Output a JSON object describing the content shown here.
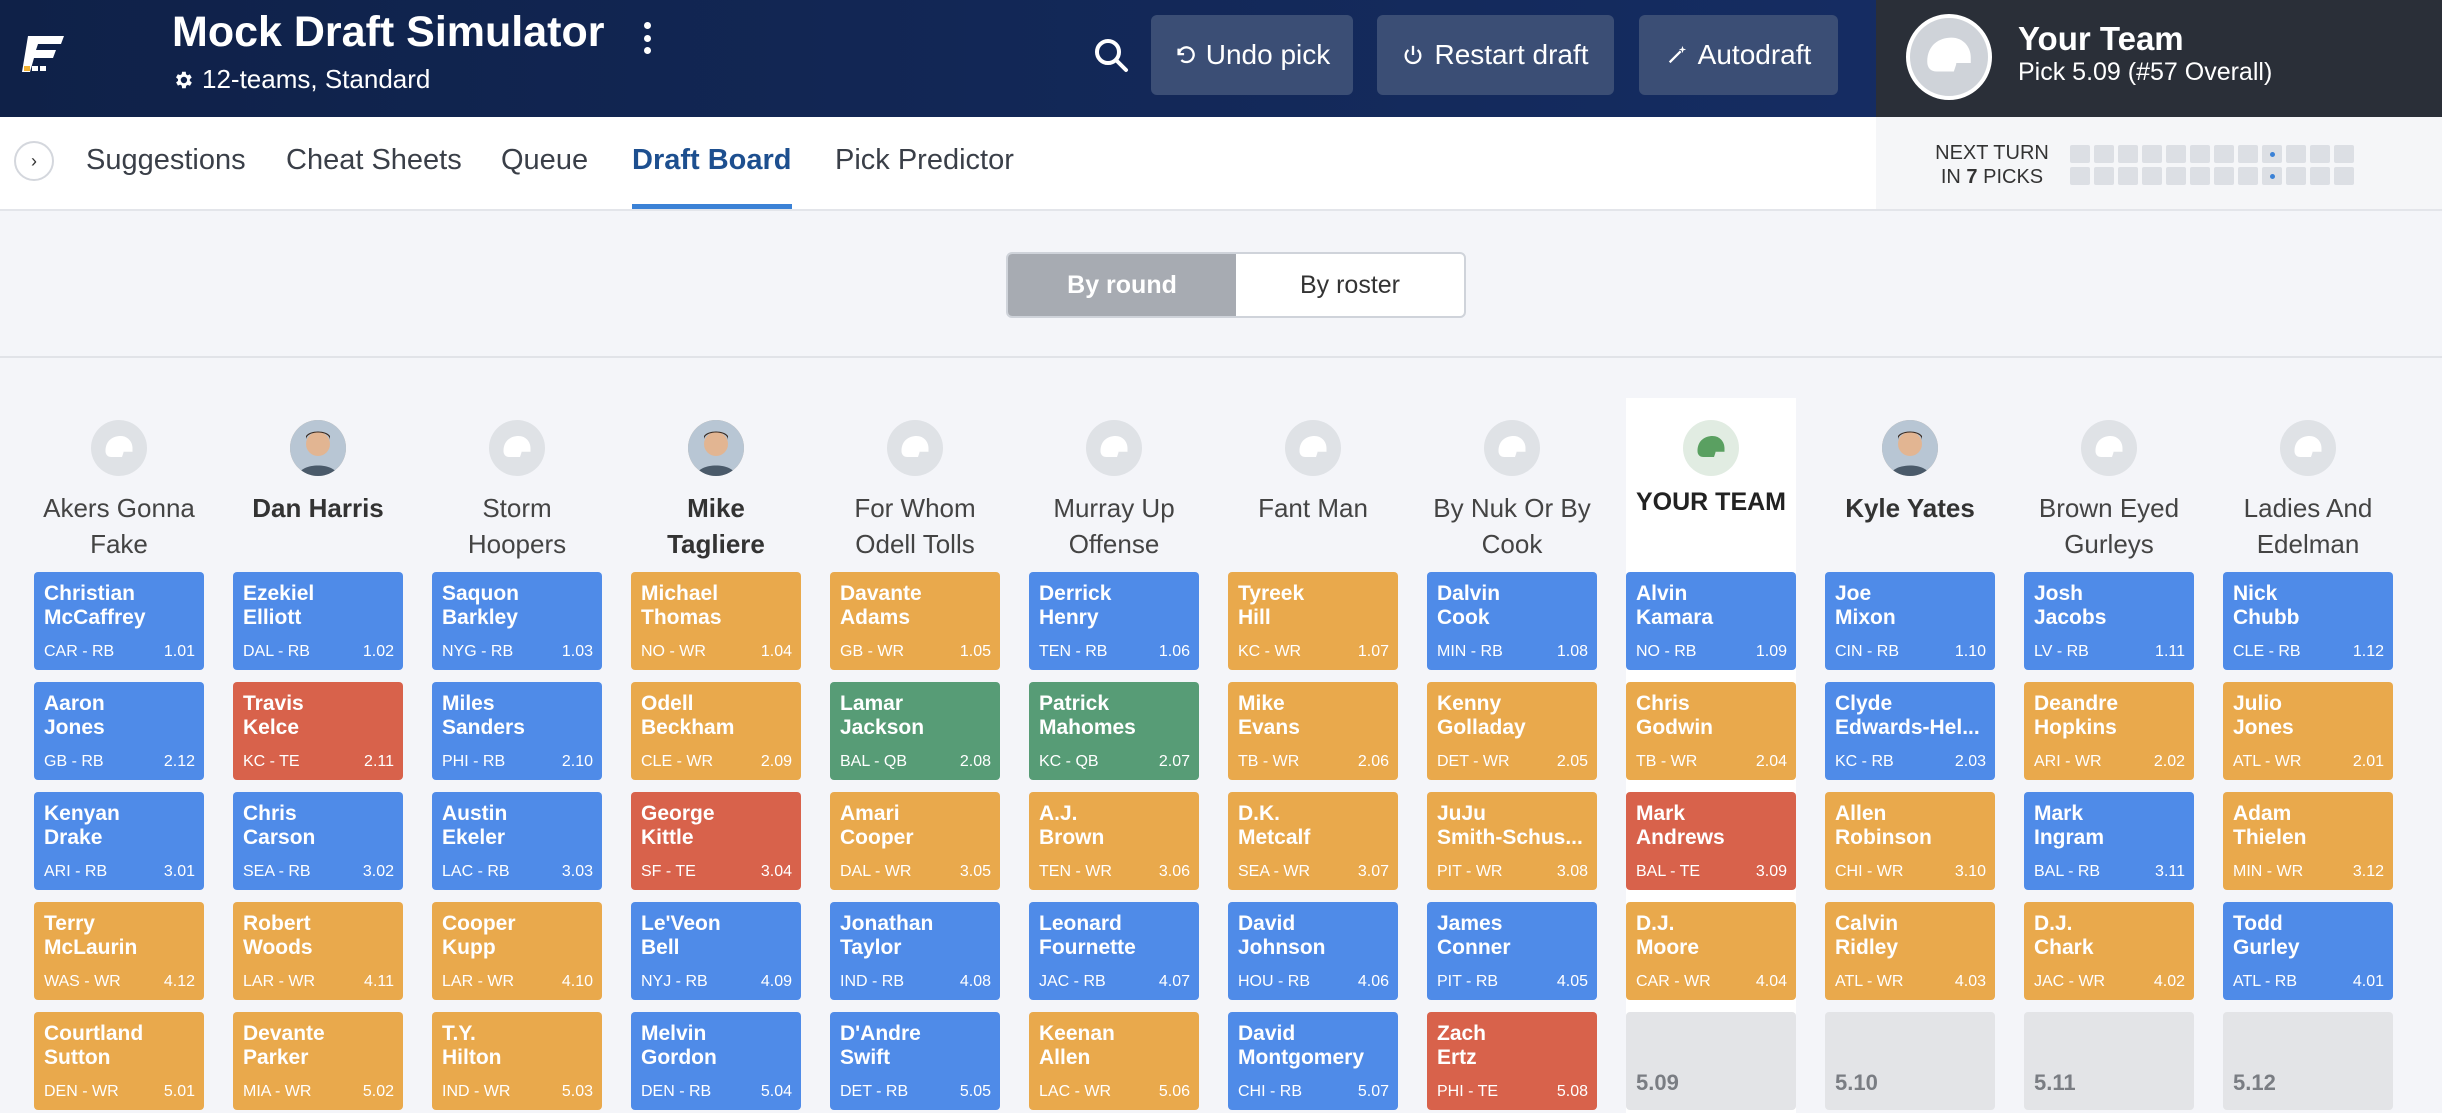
{
  "app": {
    "title": "Mock Draft Simulator",
    "settings": "12-teams, Standard",
    "undo_label": "Undo pick",
    "restart_label": "Restart draft",
    "autodraft_label": "Autodraft"
  },
  "my_team": {
    "name": "Your Team",
    "pick": "Pick 5.09 (#57 Overall)"
  },
  "tabs": [
    "Suggestions",
    "Cheat Sheets",
    "Queue",
    "Draft Board",
    "Pick Predictor"
  ],
  "next_turn": {
    "line1": "NEXT TURN",
    "line2_pre": "IN ",
    "picks": "7",
    "line2_post": " PICKS"
  },
  "view_toggle": {
    "by_round": "By round",
    "by_roster": "By roster"
  },
  "colors": {
    "RB": "#4f8be8",
    "WR": "#e9a94c",
    "TE": "#d8624b",
    "QB": "#579c76"
  },
  "teams": [
    {
      "name": "Akers Gonna Fake",
      "bold": false,
      "avatar": "helmet-icon"
    },
    {
      "name": "Dan Harris",
      "bold": true,
      "avatar": "person-photo"
    },
    {
      "name": "Storm Hoopers",
      "bold": false,
      "avatar": "helmet-icon"
    },
    {
      "name": "Mike Tagliere",
      "bold": true,
      "avatar": "person-photo"
    },
    {
      "name": "For Whom Odell Tolls",
      "bold": false,
      "avatar": "helmet-icon"
    },
    {
      "name": "Murray Up Offense",
      "bold": false,
      "avatar": "helmet-icon"
    },
    {
      "name": "Fant Man",
      "bold": false,
      "avatar": "helmet-icon"
    },
    {
      "name": "By Nuk Or By Cook",
      "bold": false,
      "avatar": "helmet-icon"
    },
    {
      "name": "YOUR TEAM",
      "bold": true,
      "avatar": "green-helmet-icon",
      "mine": true
    },
    {
      "name": "Kyle Yates",
      "bold": true,
      "avatar": "person-photo"
    },
    {
      "name": "Brown Eyed Gurleys",
      "bold": false,
      "avatar": "helmet-icon"
    },
    {
      "name": "Ladies And Edelman",
      "bold": false,
      "avatar": "helmet-icon"
    }
  ],
  "rounds": [
    [
      {
        "name": "Christian\nMcCaffrey",
        "team": "CAR - RB",
        "pos": "RB",
        "pick": "1.01"
      },
      {
        "name": "Ezekiel\nElliott",
        "team": "DAL - RB",
        "pos": "RB",
        "pick": "1.02"
      },
      {
        "name": "Saquon\nBarkley",
        "team": "NYG - RB",
        "pos": "RB",
        "pick": "1.03"
      },
      {
        "name": "Michael\nThomas",
        "team": "NO - WR",
        "pos": "WR",
        "pick": "1.04"
      },
      {
        "name": "Davante\nAdams",
        "team": "GB - WR",
        "pos": "WR",
        "pick": "1.05"
      },
      {
        "name": "Derrick\nHenry",
        "team": "TEN - RB",
        "pos": "RB",
        "pick": "1.06"
      },
      {
        "name": "Tyreek\nHill",
        "team": "KC - WR",
        "pos": "WR",
        "pick": "1.07"
      },
      {
        "name": "Dalvin\nCook",
        "team": "MIN - RB",
        "pos": "RB",
        "pick": "1.08"
      },
      {
        "name": "Alvin\nKamara",
        "team": "NO - RB",
        "pos": "RB",
        "pick": "1.09"
      },
      {
        "name": "Joe\nMixon",
        "team": "CIN - RB",
        "pos": "RB",
        "pick": "1.10"
      },
      {
        "name": "Josh\nJacobs",
        "team": "LV - RB",
        "pos": "RB",
        "pick": "1.11"
      },
      {
        "name": "Nick\nChubb",
        "team": "CLE - RB",
        "pos": "RB",
        "pick": "1.12"
      }
    ],
    [
      {
        "name": "Aaron\nJones",
        "team": "GB - RB",
        "pos": "RB",
        "pick": "2.12"
      },
      {
        "name": "Travis\nKelce",
        "team": "KC - TE",
        "pos": "TE",
        "pick": "2.11"
      },
      {
        "name": "Miles\nSanders",
        "team": "PHI - RB",
        "pos": "RB",
        "pick": "2.10"
      },
      {
        "name": "Odell\nBeckham",
        "team": "CLE - WR",
        "pos": "WR",
        "pick": "2.09"
      },
      {
        "name": "Lamar\nJackson",
        "team": "BAL - QB",
        "pos": "QB",
        "pick": "2.08"
      },
      {
        "name": "Patrick\nMahomes",
        "team": "KC - QB",
        "pos": "QB",
        "pick": "2.07"
      },
      {
        "name": "Mike\nEvans",
        "team": "TB - WR",
        "pos": "WR",
        "pick": "2.06"
      },
      {
        "name": "Kenny\nGolladay",
        "team": "DET - WR",
        "pos": "WR",
        "pick": "2.05"
      },
      {
        "name": "Chris\nGodwin",
        "team": "TB - WR",
        "pos": "WR",
        "pick": "2.04"
      },
      {
        "name": "Clyde\nEdwards-Hel...",
        "team": "KC - RB",
        "pos": "RB",
        "pick": "2.03"
      },
      {
        "name": "Deandre\nHopkins",
        "team": "ARI - WR",
        "pos": "WR",
        "pick": "2.02"
      },
      {
        "name": "Julio\nJones",
        "team": "ATL - WR",
        "pos": "WR",
        "pick": "2.01"
      }
    ],
    [
      {
        "name": "Kenyan\nDrake",
        "team": "ARI - RB",
        "pos": "RB",
        "pick": "3.01"
      },
      {
        "name": "Chris\nCarson",
        "team": "SEA - RB",
        "pos": "RB",
        "pick": "3.02"
      },
      {
        "name": "Austin\nEkeler",
        "team": "LAC - RB",
        "pos": "RB",
        "pick": "3.03"
      },
      {
        "name": "George\nKittle",
        "team": "SF - TE",
        "pos": "TE",
        "pick": "3.04"
      },
      {
        "name": "Amari\nCooper",
        "team": "DAL - WR",
        "pos": "WR",
        "pick": "3.05"
      },
      {
        "name": "A.J.\nBrown",
        "team": "TEN - WR",
        "pos": "WR",
        "pick": "3.06"
      },
      {
        "name": "D.K.\nMetcalf",
        "team": "SEA - WR",
        "pos": "WR",
        "pick": "3.07"
      },
      {
        "name": "JuJu\nSmith-Schus...",
        "team": "PIT - WR",
        "pos": "WR",
        "pick": "3.08"
      },
      {
        "name": "Mark\nAndrews",
        "team": "BAL - TE",
        "pos": "TE",
        "pick": "3.09"
      },
      {
        "name": "Allen\nRobinson",
        "team": "CHI - WR",
        "pos": "WR",
        "pick": "3.10"
      },
      {
        "name": "Mark\nIngram",
        "team": "BAL - RB",
        "pos": "RB",
        "pick": "3.11"
      },
      {
        "name": "Adam\nThielen",
        "team": "MIN - WR",
        "pos": "WR",
        "pick": "3.12"
      }
    ],
    [
      {
        "name": "Terry\nMcLaurin",
        "team": "WAS - WR",
        "pos": "WR",
        "pick": "4.12"
      },
      {
        "name": "Robert\nWoods",
        "team": "LAR - WR",
        "pos": "WR",
        "pick": "4.11"
      },
      {
        "name": "Cooper\nKupp",
        "team": "LAR - WR",
        "pos": "WR",
        "pick": "4.10"
      },
      {
        "name": "Le'Veon\nBell",
        "team": "NYJ - RB",
        "pos": "RB",
        "pick": "4.09"
      },
      {
        "name": "Jonathan\nTaylor",
        "team": "IND - RB",
        "pos": "RB",
        "pick": "4.08"
      },
      {
        "name": "Leonard\nFournette",
        "team": "JAC - RB",
        "pos": "RB",
        "pick": "4.07"
      },
      {
        "name": "David\nJohnson",
        "team": "HOU - RB",
        "pos": "RB",
        "pick": "4.06"
      },
      {
        "name": "James\nConner",
        "team": "PIT - RB",
        "pos": "RB",
        "pick": "4.05"
      },
      {
        "name": "D.J.\nMoore",
        "team": "CAR - WR",
        "pos": "WR",
        "pick": "4.04"
      },
      {
        "name": "Calvin\nRidley",
        "team": "ATL - WR",
        "pos": "WR",
        "pick": "4.03"
      },
      {
        "name": "D.J.\nChark",
        "team": "JAC - WR",
        "pos": "WR",
        "pick": "4.02"
      },
      {
        "name": "Todd\nGurley",
        "team": "ATL - RB",
        "pos": "RB",
        "pick": "4.01"
      }
    ],
    [
      {
        "name": "Courtland\nSutton",
        "team": "DEN - WR",
        "pos": "WR",
        "pick": "5.01"
      },
      {
        "name": "Devante\nParker",
        "team": "MIA - WR",
        "pos": "WR",
        "pick": "5.02"
      },
      {
        "name": "T.Y.\nHilton",
        "team": "IND - WR",
        "pos": "WR",
        "pick": "5.03"
      },
      {
        "name": "Melvin\nGordon",
        "team": "DEN - RB",
        "pos": "RB",
        "pick": "5.04"
      },
      {
        "name": "D'Andre\nSwift",
        "team": "DET - RB",
        "pos": "RB",
        "pick": "5.05"
      },
      {
        "name": "Keenan\nAllen",
        "team": "LAC - WR",
        "pos": "WR",
        "pick": "5.06"
      },
      {
        "name": "David\nMontgomery",
        "team": "CHI - RB",
        "pos": "RB",
        "pick": "5.07"
      },
      {
        "name": "Zach\nErtz",
        "team": "PHI - TE",
        "pos": "TE",
        "pick": "5.08"
      },
      {
        "name": "",
        "team": "",
        "pos": "",
        "pick": "5.09",
        "empty": true
      },
      {
        "name": "",
        "team": "",
        "pos": "",
        "pick": "5.10",
        "empty": true
      },
      {
        "name": "",
        "team": "",
        "pos": "",
        "pick": "5.11",
        "empty": true
      },
      {
        "name": "",
        "team": "",
        "pos": "",
        "pick": "5.12",
        "empty": true
      }
    ]
  ]
}
